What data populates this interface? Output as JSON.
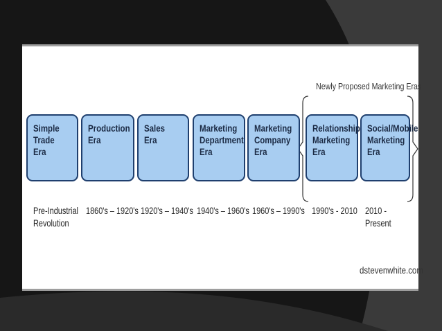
{
  "group_label": "Newly Proposed Marketing Eras",
  "eras": [
    {
      "label": "Simple Trade\nEra",
      "date": "Pre-Industrial\nRevolution"
    },
    {
      "label": "Production\nEra",
      "date": "1860's – 1920's"
    },
    {
      "label": "Sales\nEra",
      "date": "1920's – 1940's"
    },
    {
      "label": "Marketing\nDepartment\nEra",
      "date": "1940's – 1960's"
    },
    {
      "label": "Marketing\nCompany\nEra",
      "date": "1960's – 1990's"
    },
    {
      "label": "Relationship\nMarketing\nEra",
      "date": "1990's - 2010"
    },
    {
      "label": "Social/Mobile\nMarketing\nEra",
      "date": "2010 - Present"
    }
  ],
  "credit": "dstevenwhite.com",
  "colors": {
    "box_fill": "#a8cdf1",
    "box_border": "#1f3f6e",
    "background": "#161616"
  }
}
